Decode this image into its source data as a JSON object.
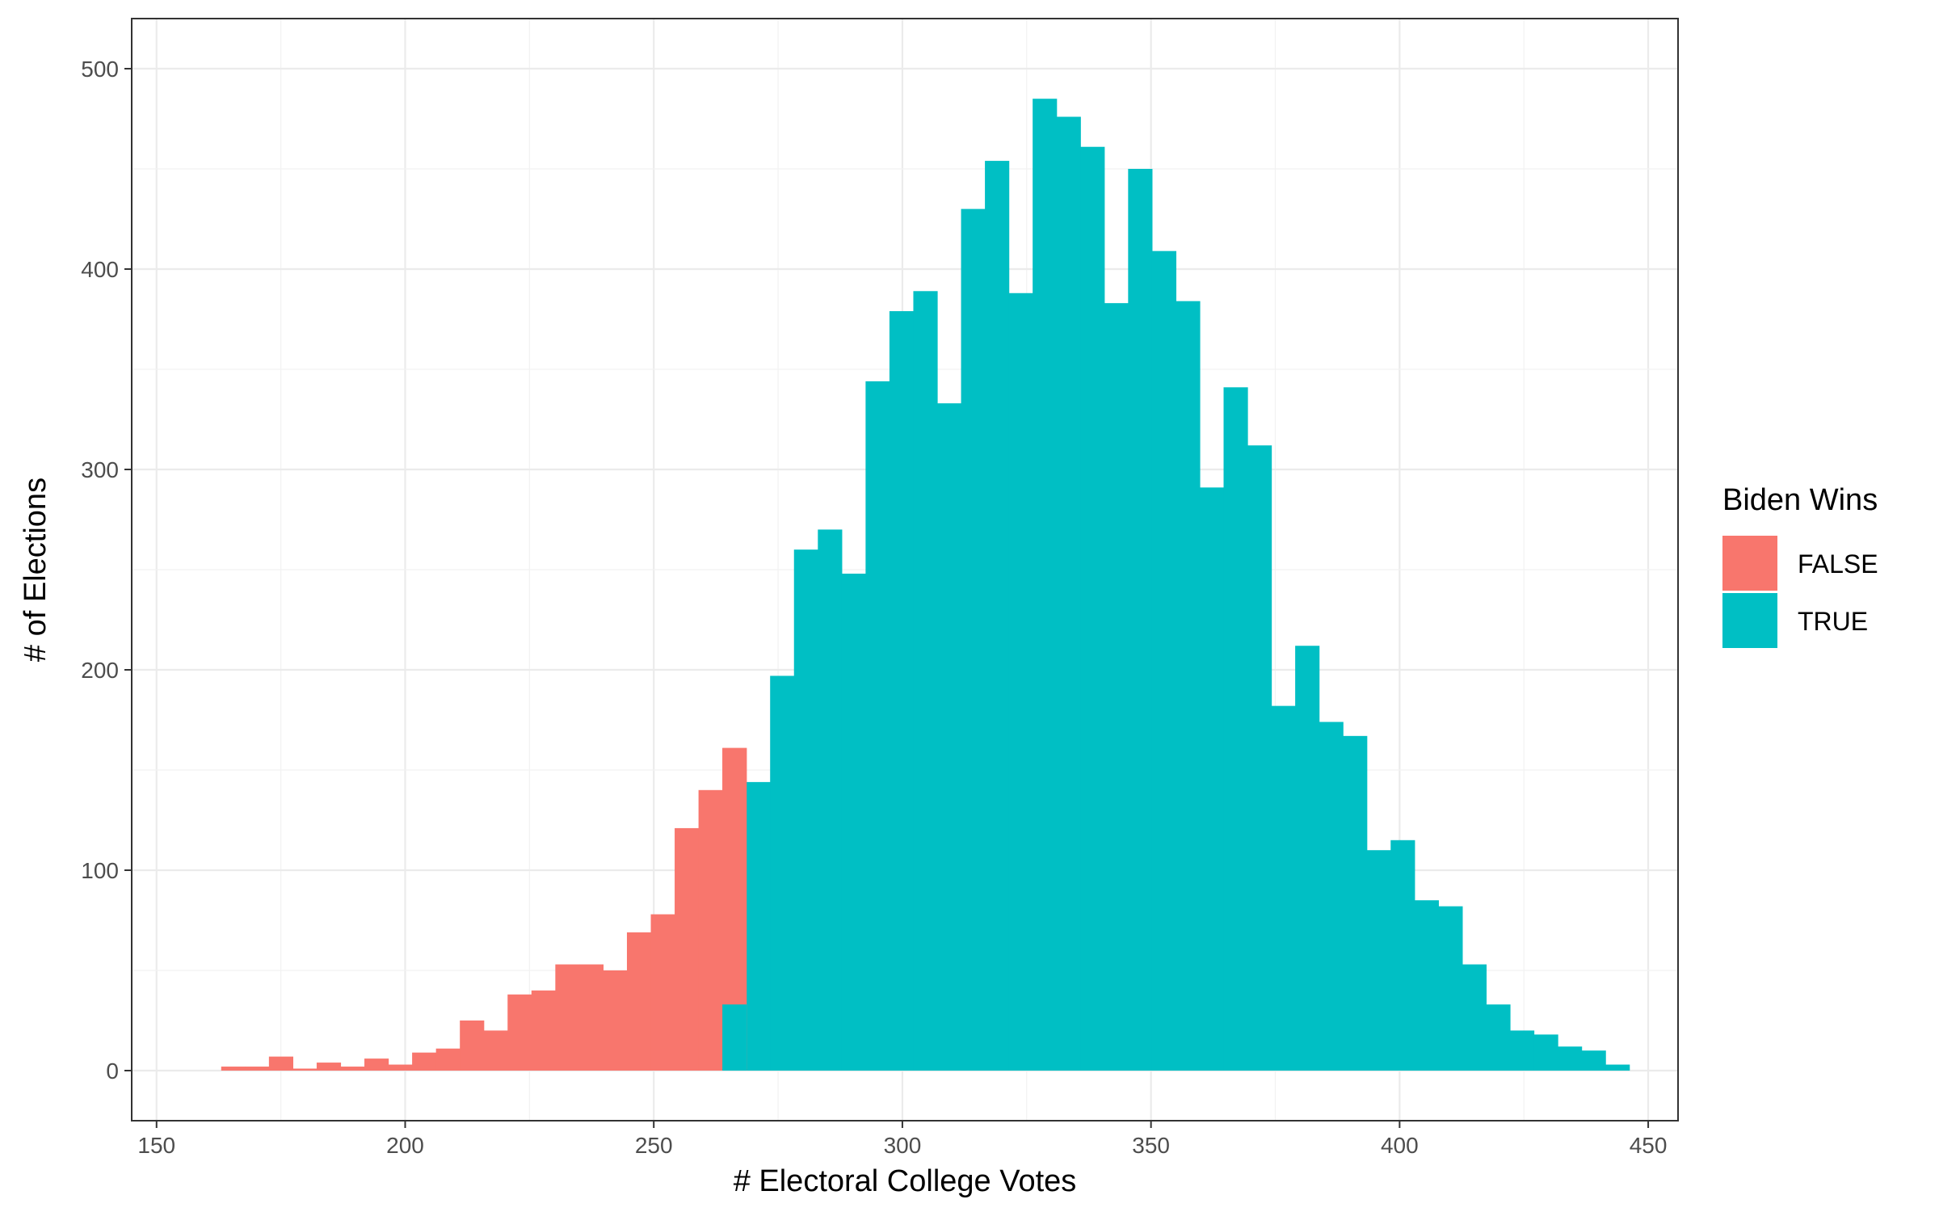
{
  "chart_data": {
    "type": "bar",
    "title": "",
    "xlabel": "# Electoral College Votes",
    "ylabel": "# of Elections",
    "xlim": [
      145,
      456
    ],
    "ylim": [
      -25,
      525
    ],
    "x_ticks": [
      150,
      200,
      250,
      300,
      350,
      400,
      450
    ],
    "y_ticks": [
      0,
      100,
      200,
      300,
      400,
      500
    ],
    "grid": true,
    "bin_width": 4.8,
    "legend": {
      "title": "Biden Wins",
      "placement": "right",
      "entries": [
        {
          "label": "FALSE",
          "color": "#F8766D"
        },
        {
          "label": "TRUE",
          "color": "#00BFC4"
        }
      ]
    },
    "series": [
      {
        "name": "FALSE",
        "color": "#F8766D",
        "x": [
          165.4,
          170.2,
          175.0,
          179.8,
          184.6,
          189.4,
          194.2,
          199.0,
          203.8,
          208.6,
          213.4,
          218.2,
          223.0,
          227.8,
          232.6,
          237.4,
          242.2,
          247.0,
          251.8,
          256.6,
          261.4,
          266.2
        ],
        "values": [
          2,
          2,
          7,
          1,
          4,
          2,
          6,
          3,
          9,
          11,
          25,
          20,
          38,
          40,
          53,
          53,
          50,
          69,
          78,
          121,
          140,
          161
        ]
      },
      {
        "name": "TRUE",
        "color": "#00BFC4",
        "x": [
          266.2,
          271.0,
          275.8,
          280.6,
          285.4,
          290.2,
          295.0,
          299.8,
          304.6,
          309.4,
          314.2,
          319.0,
          323.8,
          328.6,
          333.4,
          338.2,
          343.0,
          347.8,
          352.6,
          357.4,
          362.2,
          367.0,
          371.8,
          376.6,
          381.4,
          386.2,
          391.0,
          395.8,
          400.6,
          405.4,
          410.2,
          415.0,
          419.8,
          424.6,
          429.4,
          434.2,
          439.0,
          443.8
        ],
        "values": [
          33,
          144,
          197,
          260,
          270,
          248,
          344,
          379,
          389,
          333,
          430,
          454,
          388,
          485,
          476,
          461,
          383,
          450,
          409,
          384,
          291,
          341,
          312,
          182,
          212,
          174,
          167,
          110,
          115,
          85,
          82,
          53,
          33,
          20,
          18,
          12,
          10,
          3
        ]
      }
    ],
    "extra_false_bar": {
      "x": 266.2,
      "value": 33,
      "note": ""
    }
  }
}
